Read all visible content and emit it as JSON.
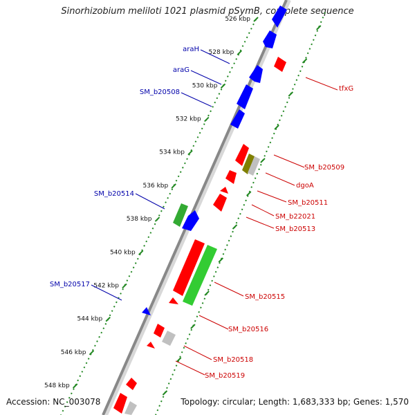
{
  "title": "Sinorhizobium meliloti 1021 plasmid pSymB, complete sequence",
  "accession_text": "Accession: NC_003078",
  "topology_text": "Topology: circular; Length: 1,683,333 bp; Genes: 1,570",
  "colors": {
    "forward": "#0000ff",
    "reverse": "#ff0000",
    "rna_green": "#33cc33",
    "olive": "#808000",
    "gray": "#c0c0c0",
    "backbone": "#888888",
    "tick": "#228822",
    "label_forward": "#0000aa",
    "label_reverse": "#cc0000"
  },
  "ruler_labels": [
    "526 kbp",
    "528 kbp",
    "530 kbp",
    "532 kbp",
    "534 kbp",
    "536 kbp",
    "538 kbp",
    "540 kbp",
    "542 kbp",
    "544 kbp",
    "546 kbp",
    "548 kbp"
  ],
  "genes_forward_labels": [
    "araH",
    "araG",
    "SM_b20508",
    "SM_b20514",
    "SM_b20517"
  ],
  "genes_reverse_labels": [
    "tfxG",
    "SM_b20509",
    "dgoA",
    "SM_b20511",
    "SM_b22021",
    "SM_b20513",
    "SM_b20515",
    "SM_b20516",
    "SM_b20518",
    "SM_b20519"
  ]
}
